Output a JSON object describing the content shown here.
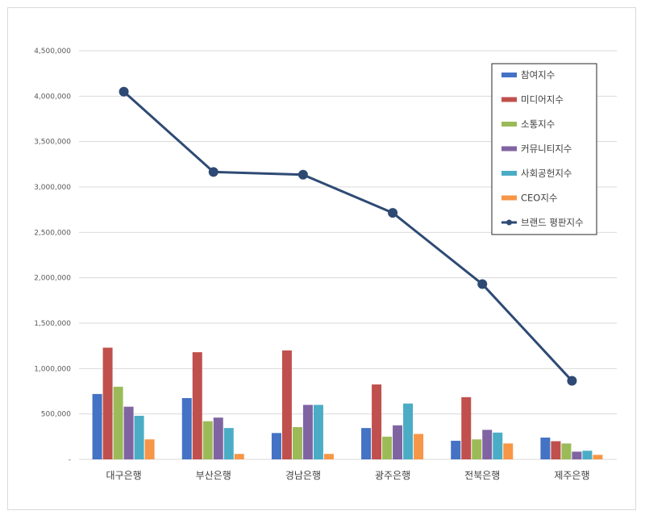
{
  "chart_data": {
    "type": "bar",
    "categories": [
      "대구은행",
      "부산은행",
      "경남은행",
      "광주은행",
      "전북은행",
      "제주은행"
    ],
    "ylim": [
      0,
      4500000
    ],
    "yticks": [
      "-",
      "500,000",
      "1,000,000",
      "1,500,000",
      "2,000,000",
      "2,500,000",
      "3,000,000",
      "3,500,000",
      "4,000,000",
      "4,500,000"
    ],
    "grid": true,
    "legend_position": "top-right",
    "series": [
      {
        "name": "참여지수",
        "type": "bar",
        "color": "#4472C4",
        "values": [
          720000,
          675000,
          290000,
          345000,
          205000,
          240000
        ]
      },
      {
        "name": "미디어지수",
        "type": "bar",
        "color": "#C0504D",
        "values": [
          1230000,
          1180000,
          1200000,
          825000,
          685000,
          200000
        ]
      },
      {
        "name": "소통지수",
        "type": "bar",
        "color": "#9BBB59",
        "values": [
          800000,
          420000,
          355000,
          250000,
          220000,
          175000
        ]
      },
      {
        "name": "커뮤니티지수",
        "type": "bar",
        "color": "#8064A2",
        "values": [
          580000,
          460000,
          600000,
          375000,
          325000,
          85000
        ]
      },
      {
        "name": "사회공헌지수",
        "type": "bar",
        "color": "#4BACC6",
        "values": [
          480000,
          345000,
          600000,
          615000,
          295000,
          95000
        ]
      },
      {
        "name": "CEO지수",
        "type": "bar",
        "color": "#F79646",
        "values": [
          220000,
          60000,
          60000,
          280000,
          175000,
          50000
        ]
      },
      {
        "name": "브랜드 평판지수",
        "type": "line",
        "color": "#2E4A74",
        "values": [
          4050000,
          3165000,
          3135000,
          2715000,
          1930000,
          865000
        ]
      }
    ]
  }
}
